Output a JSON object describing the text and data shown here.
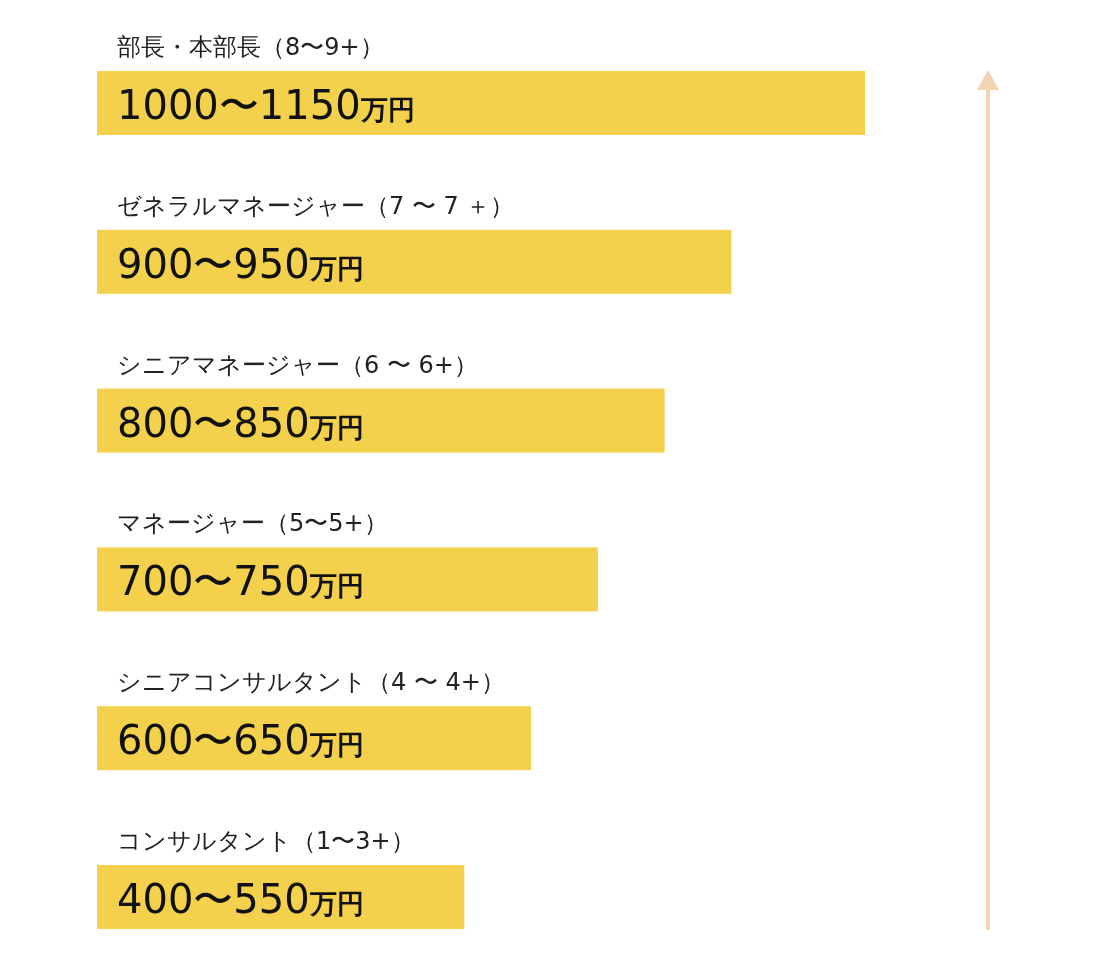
{
  "chart_data": {
    "type": "bar",
    "orientation": "horizontal",
    "categories": [
      "部長・本部長（8〜9+）",
      "ゼネラルマネージャー（7 〜 7 ＋）",
      "シニアマネージャー（6 〜 6+）",
      "マネージャー（5〜5+）",
      "シニアコンサルタント（4 〜 4+）",
      "コンサルタント（1〜3+）"
    ],
    "values": [
      1150,
      950,
      850,
      750,
      650,
      550
    ],
    "value_labels": [
      "1000〜1150万円",
      "900〜950万円",
      "800〜850万円",
      "700〜750万円",
      "600〜650万円",
      "400〜550万円"
    ],
    "color": "#f4d14c",
    "xlim": [
      0,
      1150
    ],
    "tick_labels": "y"
  }
}
